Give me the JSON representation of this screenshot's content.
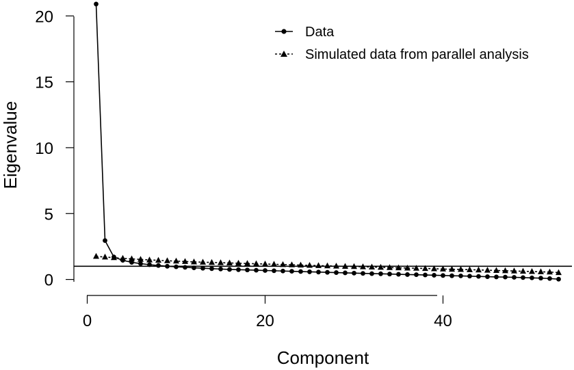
{
  "chart_data": {
    "type": "line",
    "title": "",
    "xlabel": "Component",
    "ylabel": "Eigenvalue",
    "xlim": [
      -1.5,
      54.5
    ],
    "ylim": [
      -0.8,
      21
    ],
    "xticks": [
      0,
      20,
      40
    ],
    "yticks": [
      0,
      5,
      10,
      15,
      20
    ],
    "x_tick_labels": [
      "0",
      "20",
      "40"
    ],
    "y_tick_labels": [
      "0",
      "5",
      "10",
      "15",
      "20"
    ],
    "reference_line": {
      "y": 1
    },
    "legend_position": "top-right",
    "grid": false,
    "x": [
      1,
      2,
      3,
      4,
      5,
      6,
      7,
      8,
      9,
      10,
      11,
      12,
      13,
      14,
      15,
      16,
      17,
      18,
      19,
      20,
      21,
      22,
      23,
      24,
      25,
      26,
      27,
      28,
      29,
      30,
      31,
      32,
      33,
      34,
      35,
      36,
      37,
      38,
      39,
      40,
      41,
      42,
      43,
      44,
      45,
      46,
      47,
      48,
      49,
      50,
      51,
      52,
      53
    ],
    "series": [
      {
        "name": "Data",
        "marker": "circle",
        "line": "solid",
        "values": [
          20.9,
          2.95,
          1.7,
          1.45,
          1.3,
          1.2,
          1.12,
          1.06,
          1.0,
          0.96,
          0.92,
          0.88,
          0.85,
          0.82,
          0.79,
          0.76,
          0.74,
          0.72,
          0.7,
          0.68,
          0.66,
          0.64,
          0.62,
          0.6,
          0.58,
          0.56,
          0.54,
          0.52,
          0.5,
          0.48,
          0.46,
          0.44,
          0.43,
          0.41,
          0.39,
          0.37,
          0.36,
          0.34,
          0.32,
          0.3,
          0.28,
          0.27,
          0.25,
          0.23,
          0.21,
          0.19,
          0.18,
          0.16,
          0.14,
          0.12,
          0.1,
          0.07,
          0.02
        ]
      },
      {
        "name": "Simulated data from parallel analysis",
        "marker": "triangle",
        "line": "dashed",
        "values": [
          1.75,
          1.7,
          1.65,
          1.6,
          1.56,
          1.52,
          1.48,
          1.45,
          1.42,
          1.39,
          1.36,
          1.33,
          1.31,
          1.29,
          1.27,
          1.25,
          1.23,
          1.21,
          1.19,
          1.17,
          1.15,
          1.13,
          1.11,
          1.09,
          1.07,
          1.05,
          1.03,
          1.01,
          0.99,
          0.98,
          0.96,
          0.94,
          0.92,
          0.9,
          0.88,
          0.86,
          0.85,
          0.83,
          0.81,
          0.79,
          0.77,
          0.76,
          0.74,
          0.72,
          0.7,
          0.68,
          0.66,
          0.64,
          0.62,
          0.6,
          0.58,
          0.56,
          0.52
        ]
      }
    ]
  }
}
